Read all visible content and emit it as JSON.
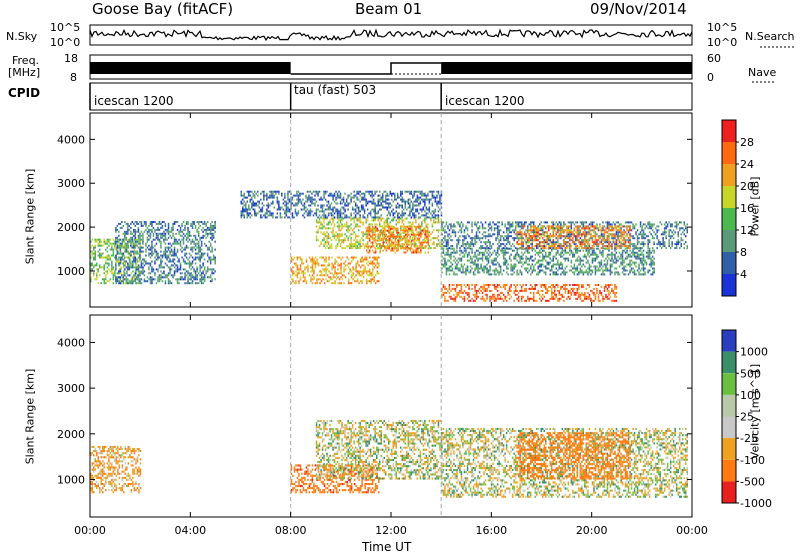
{
  "header": {
    "station": "Goose Bay (fitACF)",
    "beam": "Beam 01",
    "date": "09/Nov/2014"
  },
  "strips": {
    "nsky_label": "N.Sky",
    "nsearch_label": "N.Search",
    "freq_label_line1": "Freq.",
    "freq_label_line2": "[MHz]",
    "nave_label": "Nave",
    "cpid_label": "CPID",
    "noise_ticks_left": [
      "10^5",
      "10^0"
    ],
    "noise_ticks_right": [
      "10^5",
      "10^0"
    ],
    "freq_ticks": [
      "18",
      "8"
    ],
    "nave_ticks": [
      "60",
      "0"
    ],
    "cpid_segments": [
      {
        "label": "icescan 1200",
        "start_hour": 0
      },
      {
        "label": "tau (fast) 503",
        "start_hour": 8
      },
      {
        "label": "icescan 1200",
        "start_hour": 14
      }
    ]
  },
  "chart_data": [
    {
      "type": "heatmap",
      "name": "power",
      "xlabel": "",
      "ylabel": "Slant Range [km]",
      "xlim": [
        0,
        24
      ],
      "ylim": [
        180,
        4600
      ],
      "y_ticks": [
        1000,
        2000,
        3000,
        4000
      ],
      "colorbar_label": "Power [dB]",
      "colorbar_ticks": [
        "4",
        "8",
        "12",
        "16",
        "20",
        "24",
        "28"
      ],
      "colorbar_range": [
        0,
        32
      ],
      "colors": [
        "#1a33d9",
        "#2e5fa8",
        "#5a9a78",
        "#4db84d",
        "#c8d62a",
        "#f0a020",
        "#ff6a10",
        "#ee2020"
      ],
      "regions": [
        {
          "t": [
            0.0,
            2.0
          ],
          "r": [
            700,
            1700
          ],
          "v": 15
        },
        {
          "t": [
            1.0,
            5.0
          ],
          "r": [
            700,
            2100
          ],
          "v": 8
        },
        {
          "t": [
            8.0,
            11.5
          ],
          "r": [
            700,
            1300
          ],
          "v": 22
        },
        {
          "t": [
            9.0,
            14.0
          ],
          "r": [
            1500,
            2200
          ],
          "v": 18
        },
        {
          "t": [
            11.0,
            13.5
          ],
          "r": [
            1400,
            2000
          ],
          "v": 24
        },
        {
          "t": [
            14.0,
            22.5
          ],
          "r": [
            900,
            1500
          ],
          "v": 10
        },
        {
          "t": [
            14.0,
            23.8
          ],
          "r": [
            1500,
            2100
          ],
          "v": 8
        },
        {
          "t": [
            14.0,
            21.0
          ],
          "r": [
            300,
            700
          ],
          "v": 26
        },
        {
          "t": [
            17.0,
            21.5
          ],
          "r": [
            1500,
            2000
          ],
          "v": 24
        },
        {
          "t": [
            6.0,
            14.0
          ],
          "r": [
            2200,
            2800
          ],
          "v": 7
        }
      ]
    },
    {
      "type": "heatmap",
      "name": "velocity",
      "xlabel": "Time UT",
      "ylabel": "Slant Range [km]",
      "xlim": [
        0,
        24
      ],
      "ylim": [
        180,
        4600
      ],
      "x_ticks": [
        "00:00",
        "04:00",
        "08:00",
        "12:00",
        "16:00",
        "20:00",
        "00:00"
      ],
      "y_ticks": [
        1000,
        2000,
        3000,
        4000
      ],
      "colorbar_label": "Velocity [m s^-1]",
      "colorbar_ticks": [
        "1000",
        "500",
        "100",
        "25",
        "-25",
        "-100",
        "-500",
        "-1000"
      ],
      "colors": [
        "#2a3fbf",
        "#3a8f6a",
        "#6abf3f",
        "#b8c8a8",
        "#c8c8c8",
        "#f0a020",
        "#ff7a10",
        "#e82020"
      ],
      "regions": [
        {
          "t": [
            0.0,
            2.0
          ],
          "r": [
            700,
            1700
          ],
          "v": -100
        },
        {
          "t": [
            8.0,
            11.5
          ],
          "r": [
            700,
            1300
          ],
          "v": -500
        },
        {
          "t": [
            9.0,
            14.0
          ],
          "r": [
            1000,
            2300
          ],
          "v": 0
        },
        {
          "t": [
            14.0,
            23.8
          ],
          "r": [
            600,
            2100
          ],
          "v": 0
        },
        {
          "t": [
            17.0,
            21.5
          ],
          "r": [
            1000,
            2000
          ],
          "v": -300
        }
      ]
    }
  ]
}
